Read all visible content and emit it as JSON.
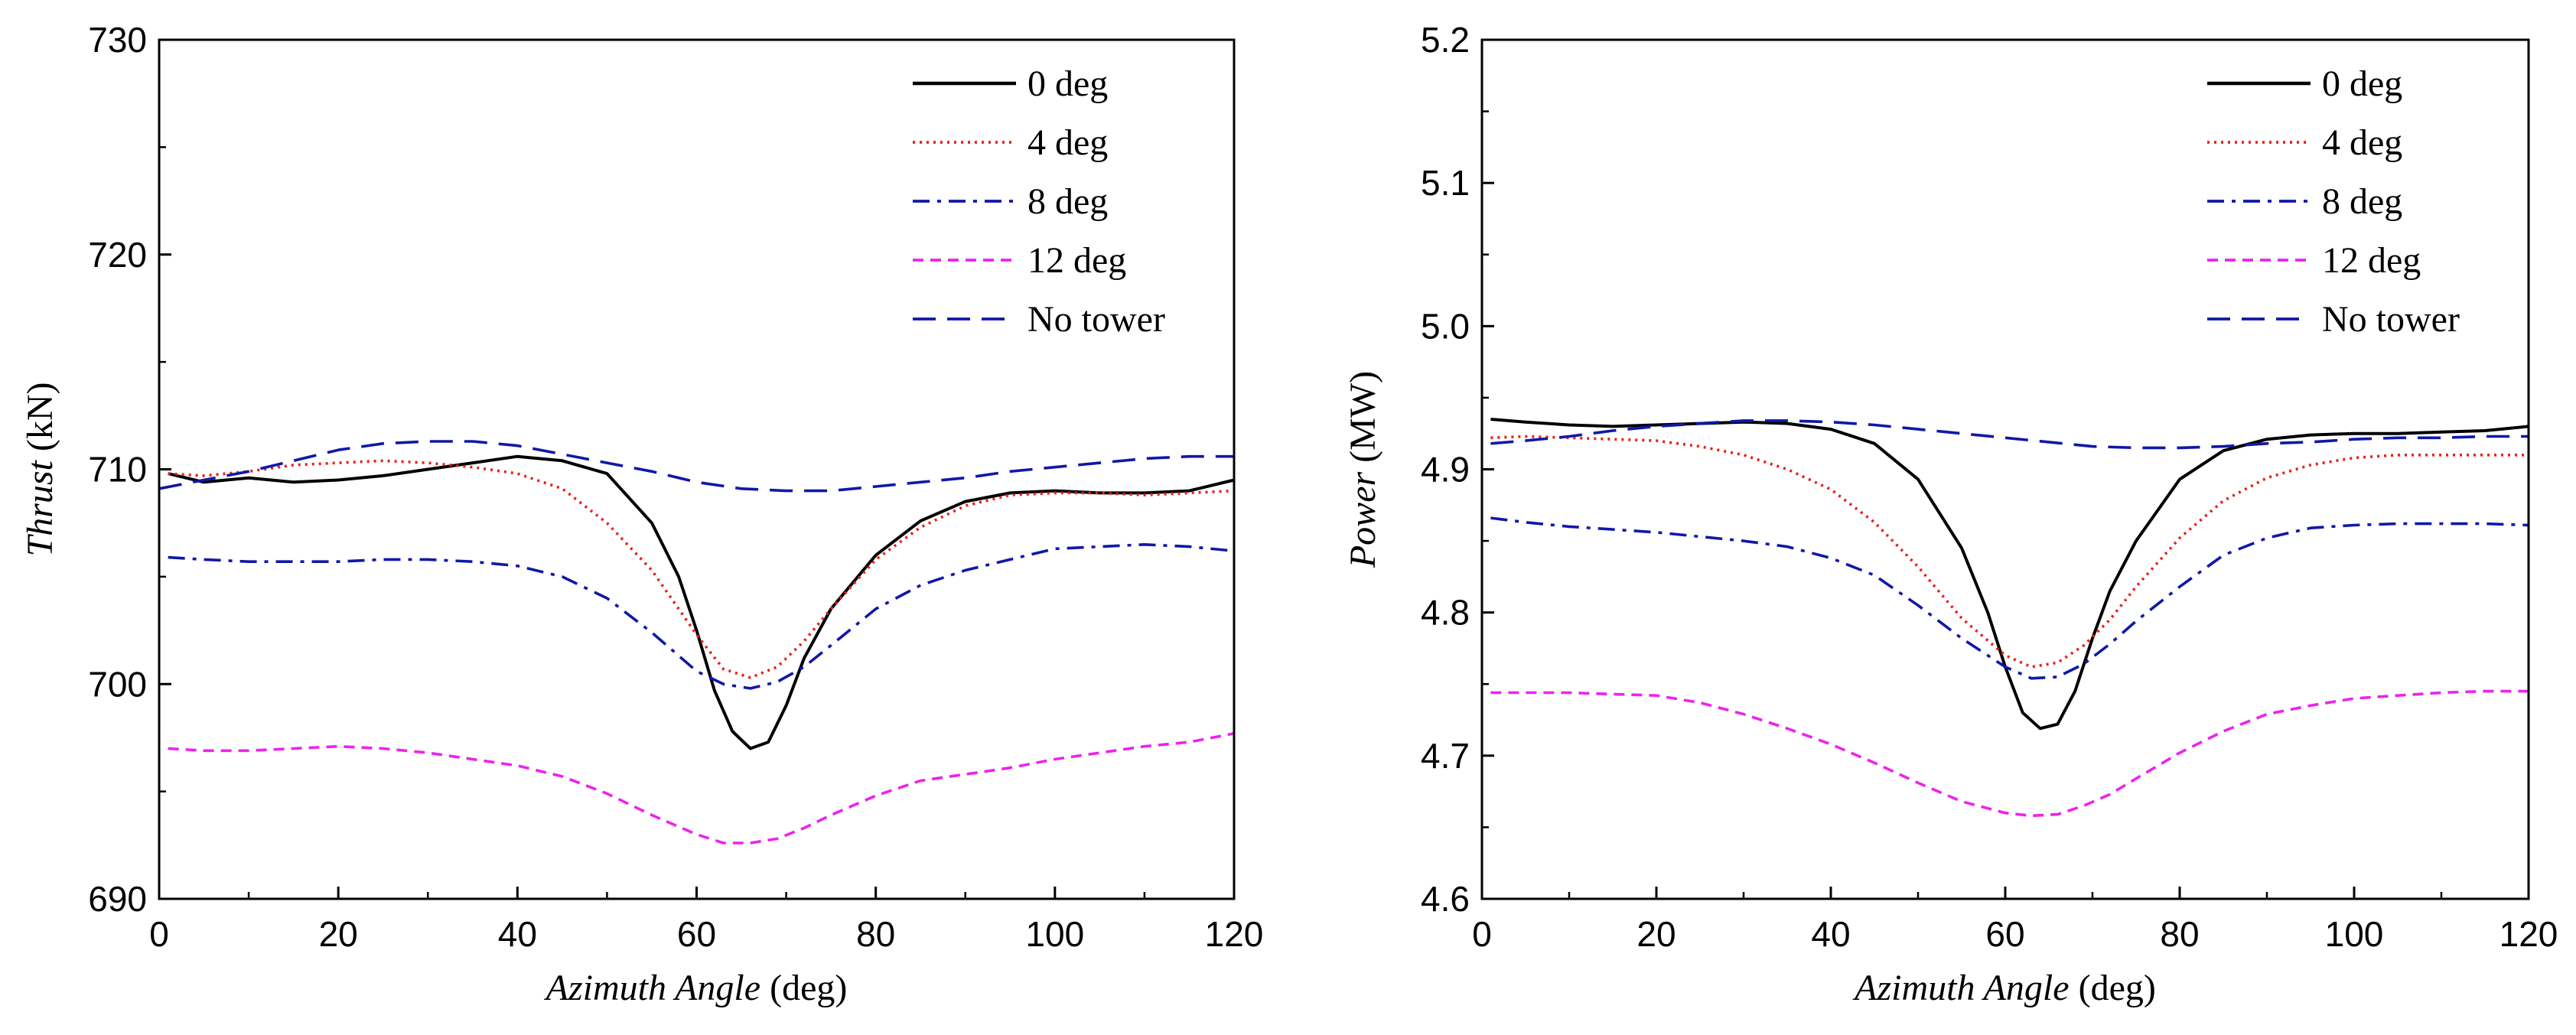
{
  "chart_data": [
    {
      "type": "line",
      "id": "thrust",
      "xlabel_italic": "Azimuth Angle",
      "xlabel_unit": " (deg)",
      "ylabel_italic": "Thrust",
      "ylabel_unit": " (kN)",
      "xlim": [
        0,
        120
      ],
      "ylim": [
        690,
        730
      ],
      "xticks": [
        0,
        20,
        40,
        60,
        80,
        100,
        120
      ],
      "yticks": [
        690,
        700,
        710,
        720,
        730
      ],
      "legend_position": "top-right",
      "series": [
        {
          "name": "0 deg",
          "color": "#000000",
          "dash": "solid",
          "x": [
            1,
            5,
            10,
            15,
            20,
            25,
            30,
            35,
            40,
            45,
            50,
            55,
            58,
            60,
            62,
            64,
            66,
            68,
            70,
            72,
            75,
            80,
            85,
            90,
            95,
            100,
            105,
            110,
            115,
            120
          ],
          "y": [
            709.8,
            709.4,
            709.6,
            709.4,
            709.5,
            709.7,
            710.0,
            710.3,
            710.6,
            710.4,
            709.8,
            707.5,
            705.0,
            702.5,
            699.7,
            697.8,
            697.0,
            697.3,
            699.0,
            701.2,
            703.5,
            706.0,
            707.6,
            708.5,
            708.9,
            709.0,
            708.9,
            708.9,
            709.0,
            709.5
          ]
        },
        {
          "name": "4 deg",
          "color": "#e8201a",
          "dash": "dotted",
          "x": [
            1,
            5,
            10,
            15,
            20,
            25,
            30,
            35,
            40,
            45,
            50,
            55,
            60,
            63,
            66,
            69,
            72,
            75,
            80,
            85,
            90,
            95,
            100,
            105,
            110,
            115,
            120
          ],
          "y": [
            709.8,
            709.7,
            709.9,
            710.2,
            710.3,
            710.4,
            710.3,
            710.1,
            709.8,
            709.1,
            707.5,
            705.3,
            702.3,
            700.7,
            700.3,
            700.8,
            702.0,
            703.5,
            705.8,
            707.3,
            708.3,
            708.8,
            708.9,
            708.9,
            708.8,
            708.9,
            709.0
          ]
        },
        {
          "name": "8 deg",
          "color": "#1018a8",
          "dash": "dashdot",
          "x": [
            1,
            5,
            10,
            15,
            20,
            25,
            30,
            35,
            40,
            45,
            50,
            55,
            60,
            63,
            66,
            69,
            72,
            75,
            80,
            85,
            90,
            95,
            100,
            105,
            110,
            115,
            120
          ],
          "y": [
            705.9,
            705.8,
            705.7,
            705.7,
            705.7,
            705.8,
            705.8,
            705.7,
            705.5,
            705.0,
            704.0,
            702.4,
            700.6,
            700.0,
            699.8,
            700.1,
            700.8,
            701.8,
            703.5,
            704.6,
            705.3,
            705.8,
            706.3,
            706.4,
            706.5,
            706.4,
            706.2
          ]
        },
        {
          "name": "12 deg",
          "color": "#ee22ee",
          "dash": "dashed-short",
          "x": [
            1,
            5,
            10,
            15,
            20,
            25,
            30,
            35,
            40,
            45,
            50,
            55,
            60,
            63,
            66,
            69,
            72,
            75,
            80,
            85,
            90,
            95,
            100,
            105,
            110,
            115,
            120
          ],
          "y": [
            697.0,
            696.9,
            696.9,
            697.0,
            697.1,
            697.0,
            696.8,
            696.5,
            696.2,
            695.7,
            694.9,
            693.9,
            693.0,
            692.6,
            692.6,
            692.8,
            693.3,
            693.9,
            694.8,
            695.5,
            695.8,
            696.1,
            696.5,
            696.8,
            697.1,
            697.3,
            697.7
          ]
        },
        {
          "name": "No tower",
          "color": "#1018a8",
          "dash": "dashed-long",
          "x": [
            0,
            5,
            10,
            15,
            20,
            25,
            30,
            35,
            40,
            45,
            50,
            55,
            60,
            65,
            70,
            75,
            80,
            85,
            90,
            95,
            100,
            105,
            110,
            115,
            120
          ],
          "y": [
            709.1,
            709.5,
            709.9,
            710.4,
            710.9,
            711.2,
            711.3,
            711.3,
            711.1,
            710.7,
            710.3,
            709.9,
            709.4,
            709.1,
            709.0,
            709.0,
            709.2,
            709.4,
            709.6,
            709.9,
            710.1,
            710.3,
            710.5,
            710.6,
            710.6
          ]
        }
      ]
    },
    {
      "type": "line",
      "id": "power",
      "xlabel_italic": "Azimuth Angle",
      "xlabel_unit": " (deg)",
      "ylabel_italic": "Power",
      "ylabel_unit": " (MW)",
      "xlim": [
        0,
        120
      ],
      "ylim": [
        4.6,
        5.2
      ],
      "xticks": [
        0,
        20,
        40,
        60,
        80,
        100,
        120
      ],
      "yticks": [
        4.6,
        4.7,
        4.8,
        4.9,
        5.0,
        5.1,
        5.2
      ],
      "ytick_labels": [
        "4.6",
        "4.7",
        "4.8",
        "4.9",
        "5.0",
        "5.1",
        "5.2"
      ],
      "legend_position": "top-right",
      "series": [
        {
          "name": "0 deg",
          "color": "#000000",
          "dash": "solid",
          "x": [
            1,
            5,
            10,
            15,
            20,
            25,
            30,
            35,
            40,
            45,
            50,
            55,
            58,
            60,
            62,
            64,
            66,
            68,
            70,
            72,
            75,
            80,
            85,
            90,
            95,
            100,
            105,
            110,
            115,
            120
          ],
          "y": [
            4.935,
            4.933,
            4.931,
            4.93,
            4.931,
            4.932,
            4.933,
            4.932,
            4.928,
            4.918,
            4.893,
            4.845,
            4.8,
            4.762,
            4.73,
            4.719,
            4.722,
            4.745,
            4.782,
            4.815,
            4.85,
            4.893,
            4.913,
            4.921,
            4.924,
            4.925,
            4.925,
            4.926,
            4.927,
            4.93
          ]
        },
        {
          "name": "4 deg",
          "color": "#e8201a",
          "dash": "dotted",
          "x": [
            1,
            5,
            10,
            15,
            20,
            25,
            30,
            35,
            40,
            45,
            50,
            55,
            60,
            63,
            66,
            69,
            72,
            75,
            80,
            85,
            90,
            95,
            100,
            105,
            110,
            115,
            120
          ],
          "y": [
            4.922,
            4.923,
            4.922,
            4.921,
            4.92,
            4.916,
            4.91,
            4.9,
            4.886,
            4.863,
            4.832,
            4.796,
            4.77,
            4.762,
            4.765,
            4.777,
            4.795,
            4.818,
            4.852,
            4.878,
            4.894,
            4.903,
            4.908,
            4.91,
            4.91,
            4.91,
            4.91
          ]
        },
        {
          "name": "8 deg",
          "color": "#1018a8",
          "dash": "dashdot",
          "x": [
            1,
            5,
            10,
            15,
            20,
            25,
            30,
            35,
            40,
            45,
            50,
            55,
            60,
            63,
            66,
            69,
            72,
            75,
            80,
            85,
            90,
            95,
            100,
            105,
            110,
            115,
            120
          ],
          "y": [
            4.866,
            4.863,
            4.86,
            4.858,
            4.856,
            4.853,
            4.85,
            4.846,
            4.838,
            4.826,
            4.805,
            4.782,
            4.762,
            4.754,
            4.755,
            4.764,
            4.778,
            4.794,
            4.818,
            4.84,
            4.852,
            4.859,
            4.861,
            4.862,
            4.862,
            4.862,
            4.861
          ]
        },
        {
          "name": "12 deg",
          "color": "#ee22ee",
          "dash": "dashed-short",
          "x": [
            1,
            5,
            10,
            15,
            20,
            25,
            30,
            35,
            40,
            45,
            50,
            55,
            60,
            63,
            66,
            69,
            72,
            75,
            80,
            85,
            90,
            95,
            100,
            105,
            110,
            115,
            120
          ],
          "y": [
            4.744,
            4.744,
            4.744,
            4.743,
            4.742,
            4.737,
            4.729,
            4.719,
            4.708,
            4.695,
            4.681,
            4.668,
            4.66,
            4.658,
            4.659,
            4.665,
            4.673,
            4.684,
            4.702,
            4.717,
            4.729,
            4.735,
            4.74,
            4.742,
            4.744,
            4.745,
            4.745
          ]
        },
        {
          "name": "No tower",
          "color": "#1018a8",
          "dash": "dashed-long",
          "x": [
            1,
            5,
            10,
            15,
            20,
            25,
            30,
            35,
            40,
            45,
            50,
            55,
            60,
            65,
            70,
            75,
            80,
            85,
            90,
            95,
            100,
            105,
            110,
            115,
            120
          ],
          "y": [
            4.918,
            4.92,
            4.923,
            4.927,
            4.93,
            4.932,
            4.934,
            4.934,
            4.933,
            4.931,
            4.928,
            4.925,
            4.922,
            4.919,
            4.916,
            4.915,
            4.915,
            4.916,
            4.918,
            4.919,
            4.921,
            4.922,
            4.922,
            4.923,
            4.923
          ]
        }
      ]
    }
  ]
}
